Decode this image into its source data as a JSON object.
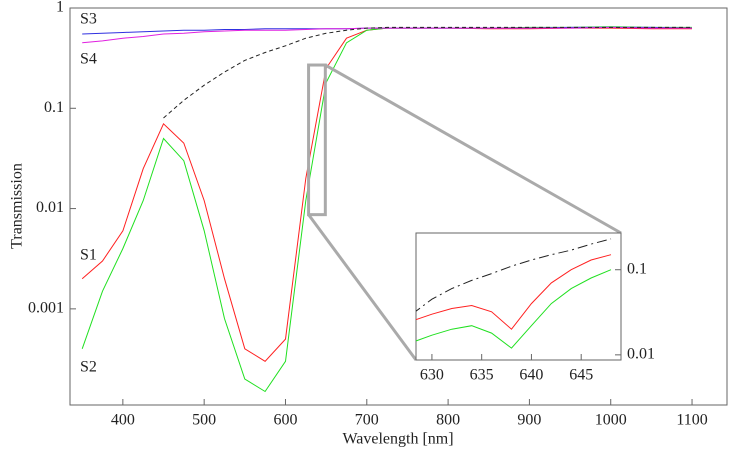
{
  "chart_data": [
    {
      "type": "line",
      "x_label": "Wavelength [nm]",
      "y_label": "Transmission",
      "log_y": true,
      "xlim": [
        335,
        1143
      ],
      "ylim": [
        0.00011,
        1
      ],
      "xticks": [
        400,
        500,
        600,
        700,
        800,
        900,
        1000,
        1100
      ],
      "yticks": [
        0.001,
        0.01,
        0.1,
        1
      ],
      "x": [
        350,
        375,
        400,
        425,
        450,
        475,
        500,
        525,
        550,
        575,
        600,
        625,
        650,
        675,
        700,
        725,
        750,
        800,
        850,
        900,
        950,
        1000,
        1050,
        1100
      ],
      "series": [
        {
          "name": "S1",
          "color": "#ff2020",
          "values": [
            0.002,
            0.003,
            0.006,
            0.025,
            0.07,
            0.045,
            0.012,
            0.002,
            0.0004,
            0.0003,
            0.0005,
            0.02,
            0.25,
            0.5,
            0.6,
            0.63,
            0.63,
            0.63,
            0.62,
            0.62,
            0.63,
            0.63,
            0.62,
            0.62
          ]
        },
        {
          "name": "S2",
          "color": "#20e020",
          "values": [
            0.0004,
            0.0015,
            0.004,
            0.012,
            0.05,
            0.03,
            0.006,
            0.0008,
            0.0002,
            0.00015,
            0.0003,
            0.012,
            0.18,
            0.45,
            0.6,
            0.63,
            0.63,
            0.63,
            0.63,
            0.64,
            0.64,
            0.65,
            0.64,
            0.64
          ]
        },
        {
          "name": "S3",
          "color": "#3030e0",
          "values": [
            0.55,
            0.56,
            0.57,
            0.58,
            0.59,
            0.6,
            0.6,
            0.61,
            0.61,
            0.62,
            0.62,
            0.62,
            0.62,
            0.62,
            0.63,
            0.63,
            0.63,
            0.63,
            0.63,
            0.63,
            0.64,
            0.64,
            0.64,
            0.63
          ]
        },
        {
          "name": "S4",
          "color": "#e020e0",
          "values": [
            0.45,
            0.47,
            0.5,
            0.52,
            0.55,
            0.56,
            0.58,
            0.59,
            0.6,
            0.6,
            0.6,
            0.61,
            0.62,
            0.62,
            0.63,
            0.63,
            0.63,
            0.63,
            0.63,
            0.63,
            0.63,
            0.64,
            0.63,
            0.63
          ]
        },
        {
          "color": "#222222",
          "dash": "4,3",
          "values": [
            null,
            null,
            null,
            null,
            0.08,
            0.12,
            0.17,
            0.23,
            0.3,
            0.36,
            0.42,
            0.5,
            0.56,
            0.6,
            0.63,
            0.64,
            0.64,
            0.64,
            0.64,
            0.64,
            0.64,
            0.64,
            0.64,
            0.64
          ]
        }
      ]
    },
    {
      "type": "line",
      "log_y": true,
      "y_axis_side": "right",
      "xlim": [
        628.4,
        649
      ],
      "ylim": [
        0.0087,
        0.27
      ],
      "xticks": [
        630,
        635,
        640,
        645
      ],
      "yticks": [
        0.01,
        0.1
      ],
      "x": [
        628,
        630,
        632,
        634,
        636,
        638,
        640,
        642,
        644,
        646,
        648
      ],
      "series": [
        {
          "color": "#ff2020",
          "values": [
            0.025,
            0.03,
            0.035,
            0.038,
            0.032,
            0.02,
            0.04,
            0.07,
            0.1,
            0.13,
            0.15
          ]
        },
        {
          "color": "#20e020",
          "values": [
            0.014,
            0.017,
            0.02,
            0.022,
            0.018,
            0.012,
            0.022,
            0.04,
            0.06,
            0.08,
            0.1
          ]
        },
        {
          "color": "#222222",
          "dash": "10,4,2,4",
          "values": [
            0.03,
            0.045,
            0.06,
            0.075,
            0.09,
            0.11,
            0.13,
            0.15,
            0.17,
            0.2,
            0.23
          ]
        }
      ]
    }
  ]
}
